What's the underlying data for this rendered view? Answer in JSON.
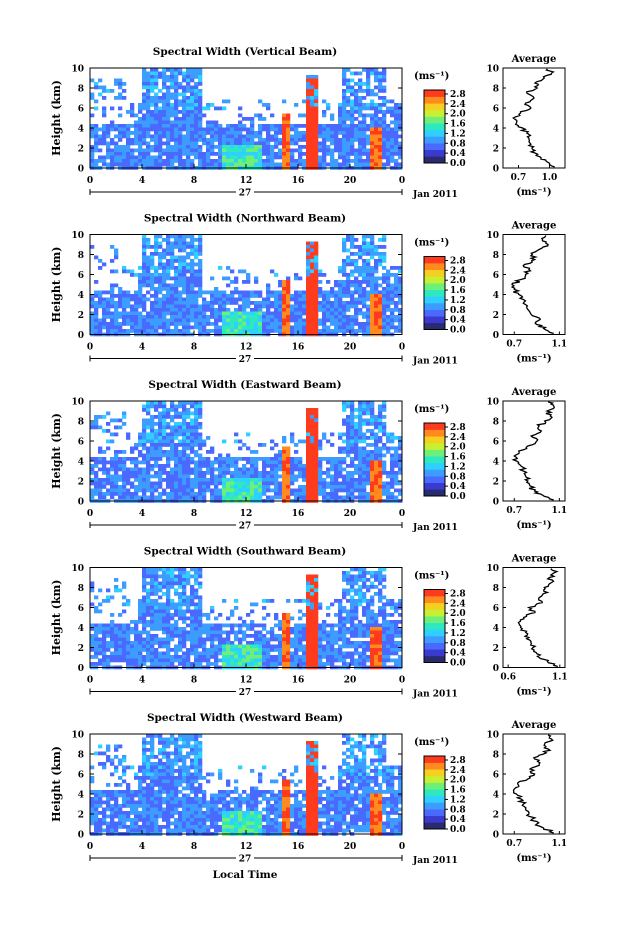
{
  "colors": {
    "background": "#ffffff",
    "axis": "#000000",
    "scale": [
      "#2a2a6e",
      "#3a3ad0",
      "#4a6aff",
      "#3d9cff",
      "#2fd0ff",
      "#2ee8c0",
      "#6ef078",
      "#c8f032",
      "#f5d021",
      "#ff8a1e",
      "#ff3b1e"
    ]
  },
  "xlabel": "Local Time",
  "chart_data": [
    {
      "type": "heatmap",
      "title": "Spectral Width (Vertical Beam)",
      "ylabel": "Height (km)",
      "ylim": [
        0,
        10
      ],
      "yticks": [
        "0",
        "2",
        "4",
        "6",
        "8",
        "10"
      ],
      "xlim": [
        0,
        24
      ],
      "xticks": [
        "0",
        "4",
        "8",
        "12",
        "16",
        "20",
        "0"
      ],
      "date_day": "27",
      "date_label": "Jan 2011",
      "colorbar": {
        "unit": "(ms⁻¹)",
        "ticks": [
          "2.8",
          "2.4",
          "2.0",
          "1.6",
          "1.2",
          "0.8",
          "0.4",
          "0.0"
        ]
      },
      "average": {
        "title": "Average",
        "xlabel": "(ms⁻¹)",
        "xticks": [
          "0.7",
          "1.0"
        ],
        "xlim": [
          0.55,
          1.15
        ],
        "height_km": [
          0.1,
          0.6,
          1.0,
          1.5,
          2.0,
          2.5,
          3.0,
          3.5,
          4.0,
          4.5,
          5.0,
          5.5,
          6.0,
          6.5,
          7.0,
          7.5,
          8.0,
          8.5,
          9.0,
          9.5,
          9.9
        ],
        "values": [
          1.05,
          0.98,
          0.92,
          0.86,
          0.83,
          0.81,
          0.8,
          0.78,
          0.74,
          0.68,
          0.65,
          0.72,
          0.82,
          0.77,
          0.85,
          0.78,
          0.88,
          0.86,
          0.95,
          1.02,
          0.98
        ]
      }
    },
    {
      "type": "heatmap",
      "title": "Spectral Width (Northward Beam)",
      "ylabel": "Height (km)",
      "ylim": [
        0,
        10
      ],
      "yticks": [
        "0",
        "2",
        "4",
        "6",
        "8",
        "10"
      ],
      "xlim": [
        0,
        24
      ],
      "xticks": [
        "0",
        "4",
        "8",
        "12",
        "16",
        "20",
        "0"
      ],
      "date_day": "27",
      "date_label": "Jan 2011",
      "colorbar": {
        "unit": "(ms⁻¹)",
        "ticks": [
          "2.8",
          "2.4",
          "2.0",
          "1.6",
          "1.2",
          "0.8",
          "0.4",
          "0.0"
        ]
      },
      "average": {
        "title": "Average",
        "xlabel": "(ms⁻¹)",
        "xticks": [
          "0.7",
          "1.1"
        ],
        "xlim": [
          0.6,
          1.15
        ],
        "height_km": [
          0.1,
          0.6,
          1.0,
          1.5,
          2.0,
          2.5,
          3.0,
          3.5,
          4.0,
          4.5,
          5.0,
          5.5,
          6.0,
          6.5,
          7.0,
          7.5,
          8.0,
          8.5,
          9.0,
          9.5,
          9.9
        ],
        "values": [
          1.05,
          0.96,
          0.9,
          0.93,
          0.85,
          0.82,
          0.8,
          0.78,
          0.74,
          0.7,
          0.68,
          0.76,
          0.8,
          0.83,
          0.79,
          0.88,
          0.86,
          0.92,
          1.0,
          0.95,
          0.98
        ]
      }
    },
    {
      "type": "heatmap",
      "title": "Spectral Width (Eastward Beam)",
      "ylabel": "Height (km)",
      "ylim": [
        0,
        10
      ],
      "yticks": [
        "0",
        "2",
        "4",
        "6",
        "8",
        "10"
      ],
      "xlim": [
        0,
        24
      ],
      "xticks": [
        "0",
        "4",
        "8",
        "12",
        "16",
        "20",
        "0"
      ],
      "date_day": "27",
      "date_label": "Jan 2011",
      "colorbar": {
        "unit": "(ms⁻¹)",
        "ticks": [
          "2.8",
          "2.4",
          "2.0",
          "1.6",
          "1.2",
          "0.8",
          "0.4",
          "0.0"
        ]
      },
      "average": {
        "title": "Average",
        "xlabel": "(ms⁻¹)",
        "xticks": [
          "0.7",
          "1.1"
        ],
        "xlim": [
          0.6,
          1.15
        ],
        "height_km": [
          0.1,
          0.6,
          1.0,
          1.5,
          2.0,
          2.5,
          3.0,
          3.5,
          4.0,
          4.5,
          5.0,
          5.5,
          6.0,
          6.5,
          7.0,
          7.5,
          8.0,
          8.5,
          9.0,
          9.5,
          9.9
        ],
        "values": [
          1.05,
          0.95,
          0.88,
          0.84,
          0.82,
          0.8,
          0.78,
          0.76,
          0.72,
          0.7,
          0.74,
          0.82,
          0.9,
          0.85,
          0.94,
          0.92,
          0.97,
          1.02,
          0.99,
          1.05,
          1.0
        ]
      }
    },
    {
      "type": "heatmap",
      "title": "Spectral Width (Southward Beam)",
      "ylabel": "Height (km)",
      "ylim": [
        0,
        10
      ],
      "yticks": [
        "0",
        "2",
        "4",
        "6",
        "8",
        "10"
      ],
      "xlim": [
        0,
        24
      ],
      "xticks": [
        "0",
        "4",
        "8",
        "12",
        "16",
        "20",
        "0"
      ],
      "date_day": "27",
      "date_label": "Jan 2011",
      "colorbar": {
        "unit": "(ms⁻¹)",
        "ticks": [
          "2.8",
          "2.4",
          "2.0",
          "1.6",
          "1.2",
          "0.8",
          "0.4",
          "0.0"
        ]
      },
      "average": {
        "title": "Average",
        "xlabel": "(ms⁻¹)",
        "xticks": [
          "0.6",
          "1.1"
        ],
        "xlim": [
          0.55,
          1.15
        ],
        "height_km": [
          0.1,
          0.6,
          1.0,
          1.5,
          2.0,
          2.5,
          3.0,
          3.5,
          4.0,
          4.5,
          5.0,
          5.5,
          6.0,
          6.5,
          7.0,
          7.5,
          8.0,
          8.5,
          9.0,
          9.5,
          9.9
        ],
        "values": [
          1.08,
          0.98,
          0.9,
          0.87,
          0.84,
          0.82,
          0.8,
          0.77,
          0.72,
          0.7,
          0.75,
          0.86,
          0.8,
          0.93,
          0.9,
          0.98,
          0.95,
          1.02,
          1.0,
          1.05,
          1.02
        ]
      }
    },
    {
      "type": "heatmap",
      "title": "Spectral Width (Westward Beam)",
      "ylabel": "Height (km)",
      "ylim": [
        0,
        10
      ],
      "yticks": [
        "0",
        "2",
        "4",
        "6",
        "8",
        "10"
      ],
      "xlim": [
        0,
        24
      ],
      "xticks": [
        "0",
        "4",
        "8",
        "12",
        "16",
        "20",
        "0"
      ],
      "date_day": "27",
      "date_label": "Jan 2011",
      "colorbar": {
        "unit": "(ms⁻¹)",
        "ticks": [
          "2.8",
          "2.4",
          "2.0",
          "1.6",
          "1.2",
          "0.8",
          "0.4",
          "0.0"
        ]
      },
      "average": {
        "title": "Average",
        "xlabel": "(ms⁻¹)",
        "xticks": [
          "0.7",
          "1.1"
        ],
        "xlim": [
          0.6,
          1.15
        ],
        "height_km": [
          0.1,
          0.6,
          1.0,
          1.5,
          2.0,
          2.5,
          3.0,
          3.5,
          4.0,
          4.5,
          5.0,
          5.5,
          6.0,
          6.5,
          7.0,
          7.5,
          8.0,
          8.5,
          9.0,
          9.5,
          9.9
        ],
        "values": [
          1.05,
          0.96,
          0.9,
          0.86,
          0.83,
          0.8,
          0.78,
          0.76,
          0.72,
          0.7,
          0.73,
          0.82,
          0.88,
          0.84,
          0.92,
          0.88,
          0.96,
          1.0,
          0.97,
          1.03,
          1.0
        ]
      }
    }
  ]
}
